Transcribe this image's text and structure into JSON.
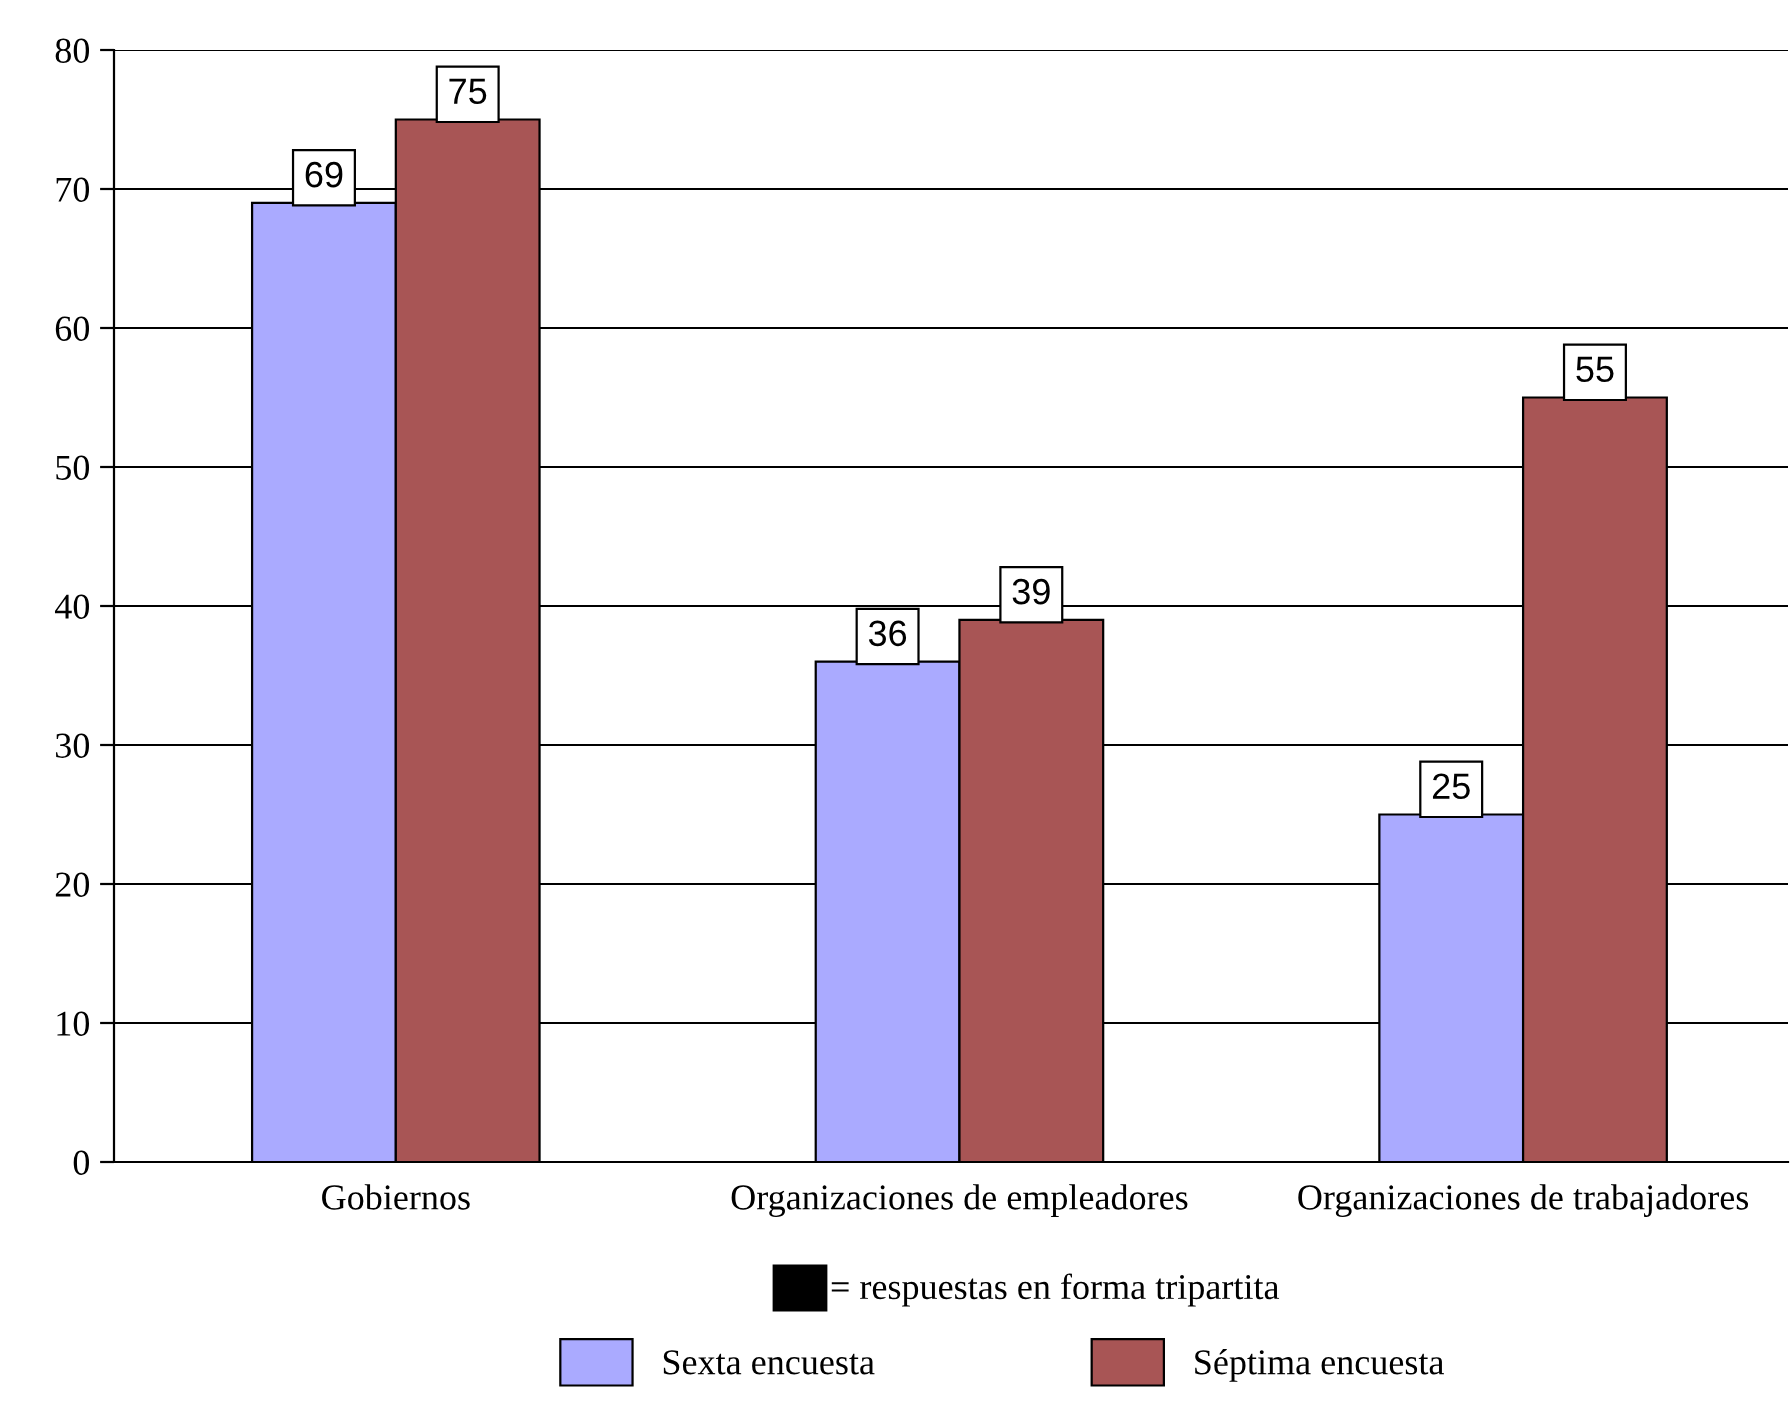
{
  "chart_data": {
    "type": "bar",
    "categories": [
      "Gobiernos",
      "Organizaciones de empleadores",
      "Organizaciones de trabajadores"
    ],
    "series": [
      {
        "name": "Sexta encuesta",
        "color": "#aaaaff",
        "values": [
          69,
          36,
          25
        ]
      },
      {
        "name": "Séptima encuesta",
        "color": "#a85555",
        "values": [
          75,
          39,
          55
        ]
      }
    ],
    "ylim": [
      0,
      80
    ],
    "yticks": [
      0,
      10,
      20,
      30,
      40,
      50,
      60,
      70,
      80
    ],
    "grid": "y",
    "data_labels": true,
    "legend": "bottom",
    "annotations": [
      "= respuestas en forma tripartita"
    ]
  }
}
